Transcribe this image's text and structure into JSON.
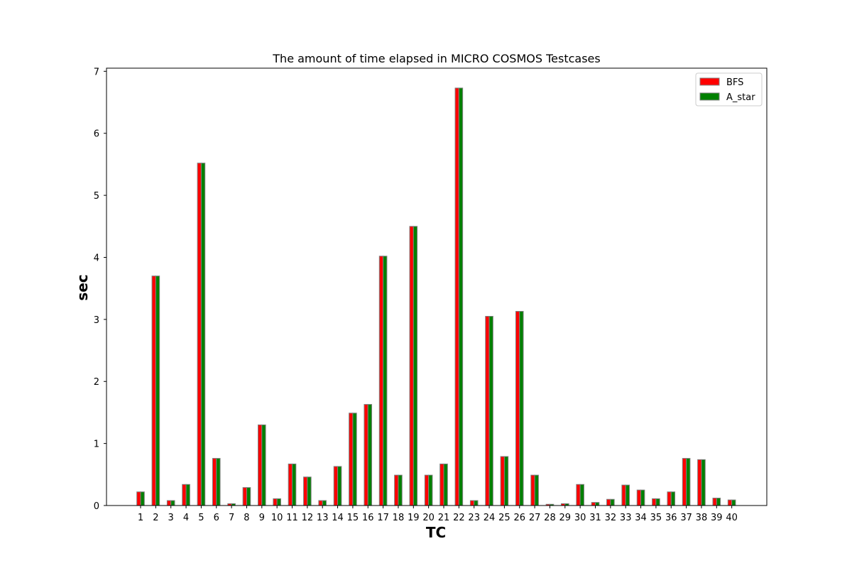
{
  "chart_data": {
    "type": "bar",
    "title": "The amount of time elapsed in MICRO COSMOS Testcases",
    "xlabel": "TC",
    "ylabel": "sec",
    "ylim": [
      0,
      7.05
    ],
    "yticks": [
      0,
      1,
      2,
      3,
      4,
      5,
      6,
      7
    ],
    "grid": false,
    "legend_position": "top-right",
    "categories": [
      "1",
      "2",
      "3",
      "4",
      "5",
      "6",
      "7",
      "8",
      "9",
      "10",
      "11",
      "12",
      "13",
      "14",
      "15",
      "16",
      "17",
      "18",
      "19",
      "20",
      "21",
      "22",
      "23",
      "24",
      "25",
      "26",
      "27",
      "28",
      "29",
      "30",
      "31",
      "32",
      "33",
      "34",
      "35",
      "36",
      "37",
      "38",
      "39",
      "40"
    ],
    "series": [
      {
        "name": "BFS",
        "color": "#ff0000",
        "values": [
          0.22,
          3.7,
          0.08,
          0.34,
          5.52,
          0.76,
          0.03,
          0.29,
          1.3,
          0.11,
          0.67,
          0.46,
          0.08,
          0.63,
          1.49,
          1.63,
          4.02,
          0.49,
          4.5,
          0.49,
          0.67,
          6.73,
          0.08,
          3.05,
          0.79,
          3.13,
          0.49,
          0.02,
          0.03,
          0.34,
          0.05,
          0.1,
          0.33,
          0.25,
          0.11,
          0.22,
          0.76,
          0.74,
          0.12,
          0.09
        ]
      },
      {
        "name": "A_star",
        "color": "#008000",
        "values": [
          0.22,
          3.7,
          0.08,
          0.34,
          5.52,
          0.76,
          0.03,
          0.29,
          1.3,
          0.11,
          0.67,
          0.46,
          0.08,
          0.63,
          1.49,
          1.63,
          4.02,
          0.49,
          4.5,
          0.49,
          0.67,
          6.73,
          0.08,
          3.05,
          0.79,
          3.13,
          0.49,
          0.02,
          0.03,
          0.34,
          0.05,
          0.1,
          0.33,
          0.25,
          0.11,
          0.22,
          0.76,
          0.74,
          0.12,
          0.09
        ]
      }
    ],
    "bar_edge_color": "#808080"
  }
}
